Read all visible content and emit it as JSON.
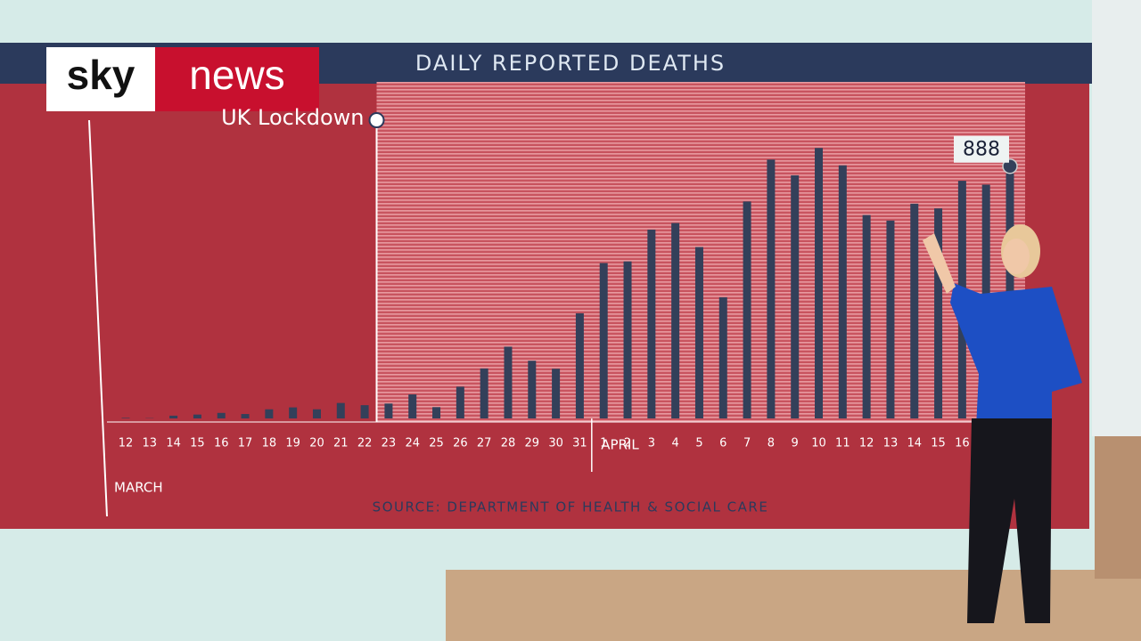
{
  "brand": {
    "left": "sky",
    "right": "news"
  },
  "chart_data": {
    "type": "bar",
    "title": "DAILY REPORTED DEATHS",
    "categories": [
      "12",
      "13",
      "14",
      "15",
      "16",
      "17",
      "18",
      "19",
      "20",
      "21",
      "22",
      "23",
      "24",
      "25",
      "26",
      "27",
      "28",
      "29",
      "30",
      "31",
      "1",
      "2",
      "3",
      "4",
      "5",
      "6",
      "7",
      "8",
      "9",
      "10",
      "11",
      "12",
      "13",
      "14",
      "15",
      "16",
      null,
      null
    ],
    "values": [
      2,
      1,
      10,
      14,
      20,
      16,
      33,
      40,
      33,
      56,
      48,
      54,
      87,
      41,
      115,
      181,
      260,
      209,
      180,
      381,
      563,
      569,
      684,
      708,
      621,
      439,
      786,
      938,
      881,
      980,
      917,
      737,
      717,
      778,
      761,
      861,
      847,
      888
    ],
    "color": "#33405a",
    "months": [
      "MARCH",
      "APRIL"
    ],
    "lockdown_label": "UK Lockdown",
    "source": "SOURCE: DEPARTMENT OF HEALTH & SOCIAL CARE"
  }
}
